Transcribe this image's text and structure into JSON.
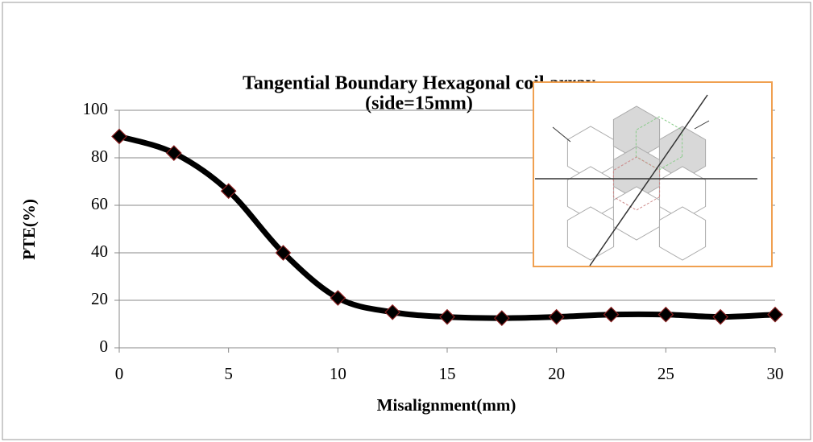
{
  "chart_data": {
    "type": "line",
    "title": "Tangential Boundary Hexagonal coil array",
    "subtitle": "(side=15mm)",
    "x_label": "Misalignment(mm)",
    "y_label": "PTE(%)",
    "x": [
      0,
      2.5,
      5,
      7.5,
      10,
      12.5,
      15,
      17.5,
      20,
      22.5,
      25,
      27.5,
      30
    ],
    "series": [
      {
        "name": "PTE",
        "color": "#000000",
        "values": [
          89,
          82,
          66,
          40,
          21,
          15,
          13,
          12.5,
          13,
          14,
          14,
          13,
          14
        ]
      }
    ],
    "xlim": [
      0,
      30
    ],
    "xticks": [
      0,
      5,
      10,
      15,
      20,
      25,
      30
    ],
    "ylim": [
      0,
      100
    ],
    "yticks": [
      0,
      20,
      40,
      60,
      80,
      100
    ],
    "grid": true
  }
}
